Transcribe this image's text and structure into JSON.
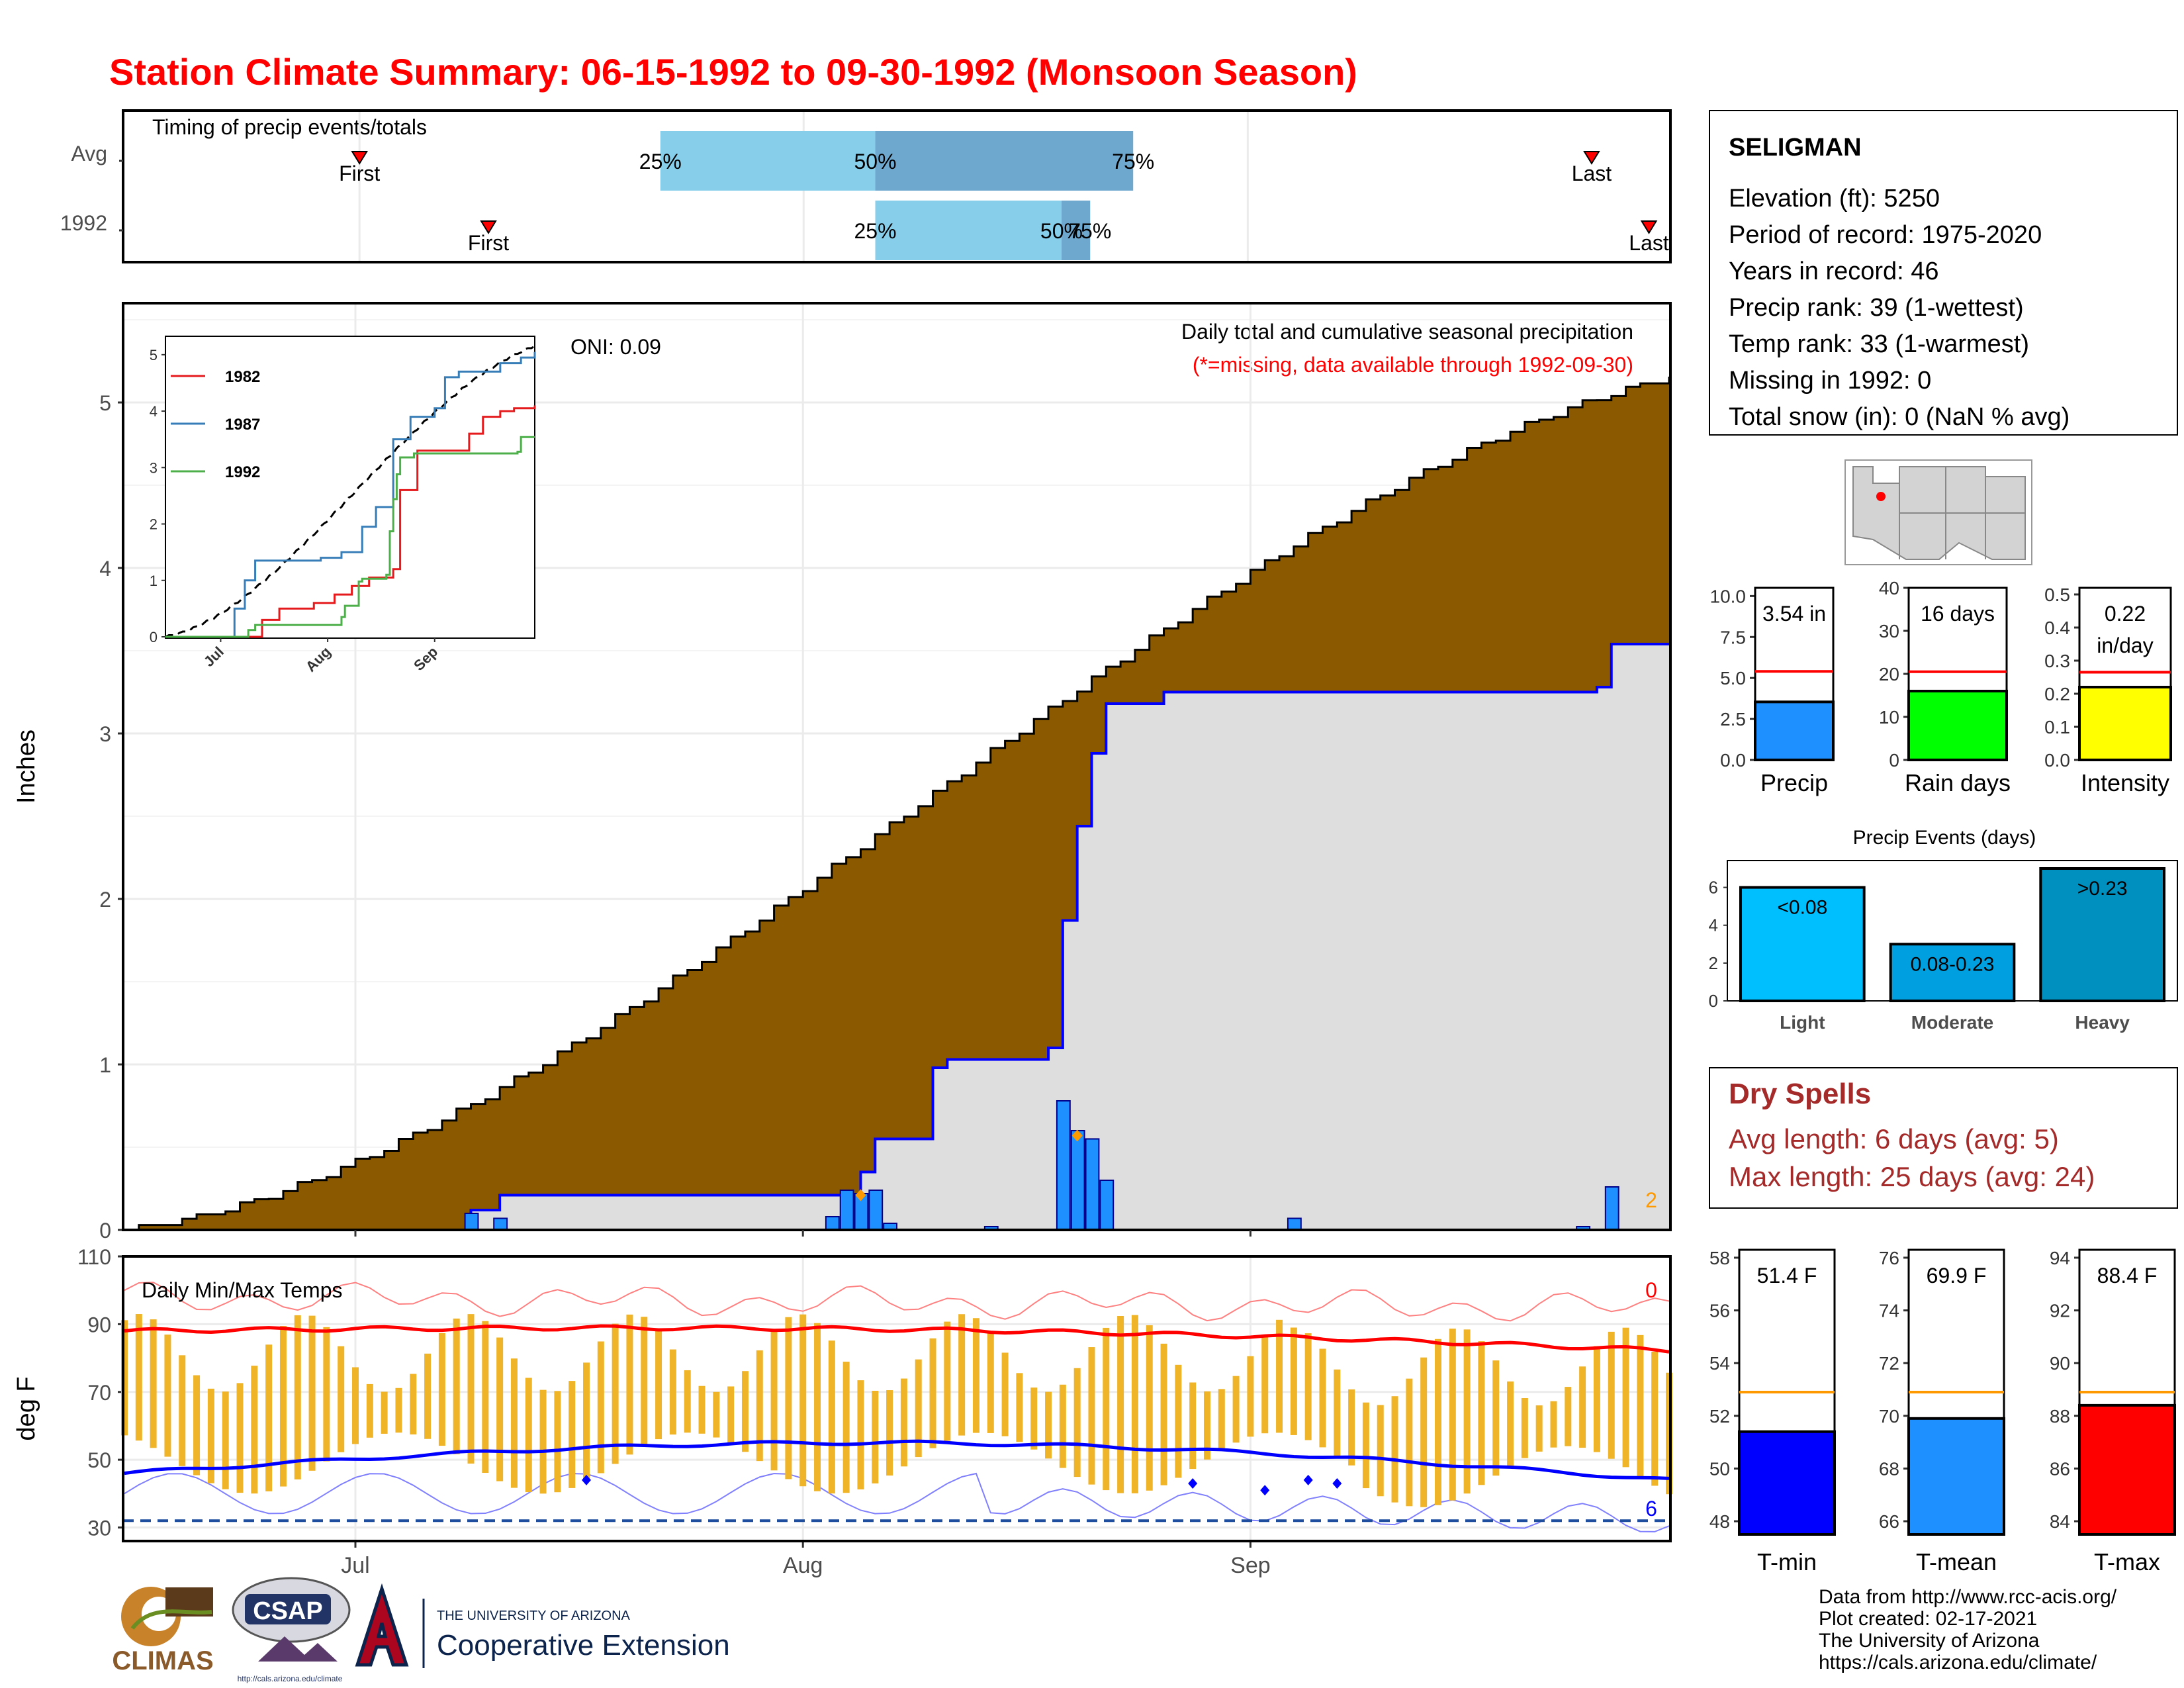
{
  "page": {
    "title": "Station Climate Summary: 06-15-1992 to 09-30-1992 (Monsoon Season)",
    "credits": [
      "Data from http://www.rcc-acis.org/",
      "Plot created: 02-17-2021",
      "The University of Arizona",
      "https://cals.arizona.edu/climate/"
    ],
    "logos": {
      "climas": "CLIMAS",
      "csap": "CSAP",
      "csap_url": "http://cals.arizona.edu/climate",
      "ua_small": "THE UNIVERSITY OF ARIZONA",
      "ua_big": "Cooperative Extension"
    }
  },
  "station": {
    "name": "SELIGMAN",
    "lines": [
      "Elevation (ft): 5250",
      "Period of record: 1975-2020",
      "Years in record: 46",
      "Precip rank: 39 (1-wettest)",
      "Temp rank: 33 (1-warmest)",
      "Missing in 1992: 0",
      "Total snow (in): 0 (NaN % avg)"
    ]
  },
  "dry_spells": {
    "title": "Dry Spells",
    "lines": [
      "Avg length: 6 days (avg: 5)",
      "Max length: 25 days (avg: 24)"
    ]
  },
  "colors": {
    "title": "#ff0000",
    "brown": "#8b5a00",
    "blue": "#0000ff",
    "bar_blue": "#1e90ff",
    "orange": "#ff9900",
    "dry_red": "#a52a2a"
  },
  "chart_data": [
    {
      "type": "bar",
      "title": "Timing of precip events/totals",
      "rows": [
        {
          "label": "Avg",
          "first": "Jul 01",
          "p25": "Jul 22",
          "p50": "Aug 06",
          "p75": "Aug 24",
          "last": "Sep 25",
          "labels": {
            "first": "First",
            "p25": "25%",
            "p50": "50%",
            "p75": "75%",
            "last": "Last"
          }
        },
        {
          "label": "1992",
          "first": "Jul 10",
          "p25": "Aug 06",
          "p50": "Aug 19",
          "p75": "Aug 21",
          "last": "Sep 29",
          "labels": {
            "first": "First",
            "p25": "25%",
            "p50": "50%",
            "p75": "75%",
            "last": "Last"
          }
        }
      ]
    },
    {
      "type": "area",
      "ylabel": "Inches",
      "ylim": [
        0,
        5.6
      ],
      "yticks": [
        0,
        1,
        2,
        3,
        4,
        5
      ],
      "xticks": [
        "Jul",
        "Aug",
        "Sep"
      ],
      "annotations": {
        "oni": "ONI: 0.09",
        "desc": "Daily total and cumulative seasonal precipitation",
        "missing": "(*=missing, data available through 1992-09-30)",
        "count": "2"
      },
      "avg_cumulative_end": 5.15,
      "cumulative_1992": [
        {
          "date": "Jun 15",
          "value": 0.0
        },
        {
          "date": "Jul 09",
          "value": 0.12
        },
        {
          "date": "Jul 11",
          "value": 0.21
        },
        {
          "date": "Aug 04",
          "value": 0.21
        },
        {
          "date": "Aug 05",
          "value": 0.35
        },
        {
          "date": "Aug 06",
          "value": 0.55
        },
        {
          "date": "Aug 10",
          "value": 0.98
        },
        {
          "date": "Aug 11",
          "value": 1.03
        },
        {
          "date": "Aug 18",
          "value": 1.1
        },
        {
          "date": "Aug 19",
          "value": 1.87
        },
        {
          "date": "Aug 20",
          "value": 2.44
        },
        {
          "date": "Aug 21",
          "value": 2.88
        },
        {
          "date": "Aug 22",
          "value": 3.18
        },
        {
          "date": "Aug 26",
          "value": 3.25
        },
        {
          "date": "Sep 25",
          "value": 3.28
        },
        {
          "date": "Sep 26",
          "value": 3.54
        },
        {
          "date": "Sep 30",
          "value": 3.54
        }
      ],
      "daily_1992": [
        {
          "date": "Jul 09",
          "value": 0.1
        },
        {
          "date": "Jul 11",
          "value": 0.07
        },
        {
          "date": "Aug 03",
          "value": 0.08
        },
        {
          "date": "Aug 04",
          "value": 0.24
        },
        {
          "date": "Aug 05",
          "value": 0.22
        },
        {
          "date": "Aug 06",
          "value": 0.24
        },
        {
          "date": "Aug 07",
          "value": 0.04
        },
        {
          "date": "Aug 14",
          "value": 0.02
        },
        {
          "date": "Aug 19",
          "value": 0.78
        },
        {
          "date": "Aug 20",
          "value": 0.6
        },
        {
          "date": "Aug 21",
          "value": 0.55
        },
        {
          "date": "Aug 22",
          "value": 0.3
        },
        {
          "date": "Sep 04",
          "value": 0.07
        },
        {
          "date": "Sep 24",
          "value": 0.02
        },
        {
          "date": "Sep 26",
          "value": 0.26
        }
      ],
      "inset": {
        "yticks": [
          0,
          1,
          2,
          3,
          4,
          5
        ],
        "xticks": [
          "Jul",
          "Aug",
          "Sep"
        ],
        "series": [
          {
            "name": "1982",
            "color": "#e41a1c",
            "values": [
              {
                "date": "Jun 15",
                "value": 0
              },
              {
                "date": "Jul 12",
                "value": 0
              },
              {
                "date": "Jul 13",
                "value": 0.3
              },
              {
                "date": "Jul 18",
                "value": 0.5
              },
              {
                "date": "Jul 28",
                "value": 0.6
              },
              {
                "date": "Aug 03",
                "value": 0.75
              },
              {
                "date": "Aug 08",
                "value": 0.9
              },
              {
                "date": "Aug 13",
                "value": 1.05
              },
              {
                "date": "Aug 20",
                "value": 1.2
              },
              {
                "date": "Aug 22",
                "value": 2.6
              },
              {
                "date": "Aug 27",
                "value": 3.3
              },
              {
                "date": "Sep 10",
                "value": 3.3
              },
              {
                "date": "Sep 11",
                "value": 3.6
              },
              {
                "date": "Sep 15",
                "value": 3.9
              },
              {
                "date": "Sep 20",
                "value": 4.0
              },
              {
                "date": "Sep 24",
                "value": 4.05
              },
              {
                "date": "Sep 30",
                "value": 4.1
              }
            ]
          },
          {
            "name": "1987",
            "color": "#377eb8",
            "values": [
              {
                "date": "Jun 15",
                "value": 0
              },
              {
                "date": "Jul 04",
                "value": 0
              },
              {
                "date": "Jul 05",
                "value": 0.5
              },
              {
                "date": "Jul 08",
                "value": 1.0
              },
              {
                "date": "Jul 11",
                "value": 1.35
              },
              {
                "date": "Jul 30",
                "value": 1.4
              },
              {
                "date": "Aug 05",
                "value": 1.5
              },
              {
                "date": "Aug 11",
                "value": 1.95
              },
              {
                "date": "Aug 15",
                "value": 2.3
              },
              {
                "date": "Aug 20",
                "value": 3.5
              },
              {
                "date": "Aug 25",
                "value": 3.9
              },
              {
                "date": "Sep 01",
                "value": 4.05
              },
              {
                "date": "Sep 04",
                "value": 4.6
              },
              {
                "date": "Sep 08",
                "value": 4.7
              },
              {
                "date": "Sep 20",
                "value": 4.85
              },
              {
                "date": "Sep 26",
                "value": 4.95
              },
              {
                "date": "Sep 30",
                "value": 5.05
              }
            ]
          },
          {
            "name": "1992",
            "color": "#4daf4a",
            "values": [
              {
                "date": "Jun 15",
                "value": 0
              },
              {
                "date": "Jul 09",
                "value": 0.12
              },
              {
                "date": "Jul 11",
                "value": 0.21
              },
              {
                "date": "Aug 04",
                "value": 0.21
              },
              {
                "date": "Aug 05",
                "value": 0.35
              },
              {
                "date": "Aug 06",
                "value": 0.55
              },
              {
                "date": "Aug 10",
                "value": 0.98
              },
              {
                "date": "Aug 11",
                "value": 1.03
              },
              {
                "date": "Aug 18",
                "value": 1.1
              },
              {
                "date": "Aug 19",
                "value": 1.87
              },
              {
                "date": "Aug 20",
                "value": 2.44
              },
              {
                "date": "Aug 21",
                "value": 2.88
              },
              {
                "date": "Aug 22",
                "value": 3.18
              },
              {
                "date": "Aug 26",
                "value": 3.25
              },
              {
                "date": "Sep 25",
                "value": 3.28
              },
              {
                "date": "Sep 26",
                "value": 3.54
              },
              {
                "date": "Sep 30",
                "value": 3.54
              }
            ]
          }
        ],
        "avg_line": {
          "style": "dashed",
          "color": "#000000",
          "end_value": 5.15
        }
      }
    },
    {
      "type": "bar",
      "title": "Daily Min/Max Temps",
      "ylabel": "deg F",
      "ylim": [
        26,
        110
      ],
      "yticks": [
        30,
        50,
        70,
        90,
        110
      ],
      "xticks": [
        "Jul",
        "Aug",
        "Sep"
      ],
      "count_labels": {
        "max": "0",
        "min": "6"
      },
      "freeze_line": 32,
      "avg_max_start": 88,
      "avg_max_end": 81,
      "avg_min_start": 46,
      "avg_min_end": 44,
      "daily_max_range": [
        70,
        93
      ],
      "daily_min_range": [
        40,
        58
      ]
    },
    {
      "type": "bar",
      "title": "Precip",
      "value_label": "3.54 in",
      "value": 3.54,
      "average": 5.4,
      "ylim": [
        0,
        10.5
      ],
      "yticks": [
        "0.0",
        "2.5",
        "5.0",
        "7.5",
        "10.0"
      ],
      "color": "#1e90ff"
    },
    {
      "type": "bar",
      "title": "Rain days",
      "value_label": "16 days",
      "value": 16,
      "average": 20.5,
      "ylim": [
        0,
        40
      ],
      "yticks": [
        "0",
        "10",
        "20",
        "30",
        "40"
      ],
      "color": "#00ff00"
    },
    {
      "type": "bar",
      "title": "Intensity",
      "value_label": "0.22",
      "value_label2": "in/day",
      "value": 0.22,
      "average": 0.265,
      "ylim": [
        0,
        0.52
      ],
      "yticks": [
        "0.0",
        "0.1",
        "0.2",
        "0.3",
        "0.4",
        "0.5"
      ],
      "color": "#ffff00"
    },
    {
      "type": "bar",
      "title": "Precip Events (days)",
      "categories": [
        "Light",
        "Moderate",
        "Heavy"
      ],
      "bar_labels": [
        "<0.08",
        "0.08-0.23",
        ">0.23"
      ],
      "values": [
        6,
        3,
        7
      ],
      "ylim": [
        0,
        7
      ],
      "yticks": [
        "0",
        "2",
        "4",
        "6"
      ],
      "colors": [
        "#00bfff",
        "#00a0e0",
        "#0090c0"
      ]
    },
    {
      "type": "bar",
      "title": "T-min",
      "value_label": "51.4 F",
      "value": 51.4,
      "average": 52.9,
      "ylim": [
        47.5,
        58.3
      ],
      "yticks": [
        "48",
        "50",
        "52",
        "54",
        "56",
        "58"
      ],
      "color": "#0000ff"
    },
    {
      "type": "bar",
      "title": "T-mean",
      "value_label": "69.9 F",
      "value": 69.9,
      "average": 70.9,
      "ylim": [
        65.5,
        76.3
      ],
      "yticks": [
        "66",
        "68",
        "70",
        "72",
        "74",
        "76"
      ],
      "color": "#1e90ff"
    },
    {
      "type": "bar",
      "title": "T-max",
      "value_label": "88.4 F",
      "value": 88.4,
      "average": 88.9,
      "ylim": [
        83.5,
        94.3
      ],
      "yticks": [
        "84",
        "86",
        "88",
        "90",
        "92",
        "94"
      ],
      "color": "#ff0000"
    }
  ]
}
